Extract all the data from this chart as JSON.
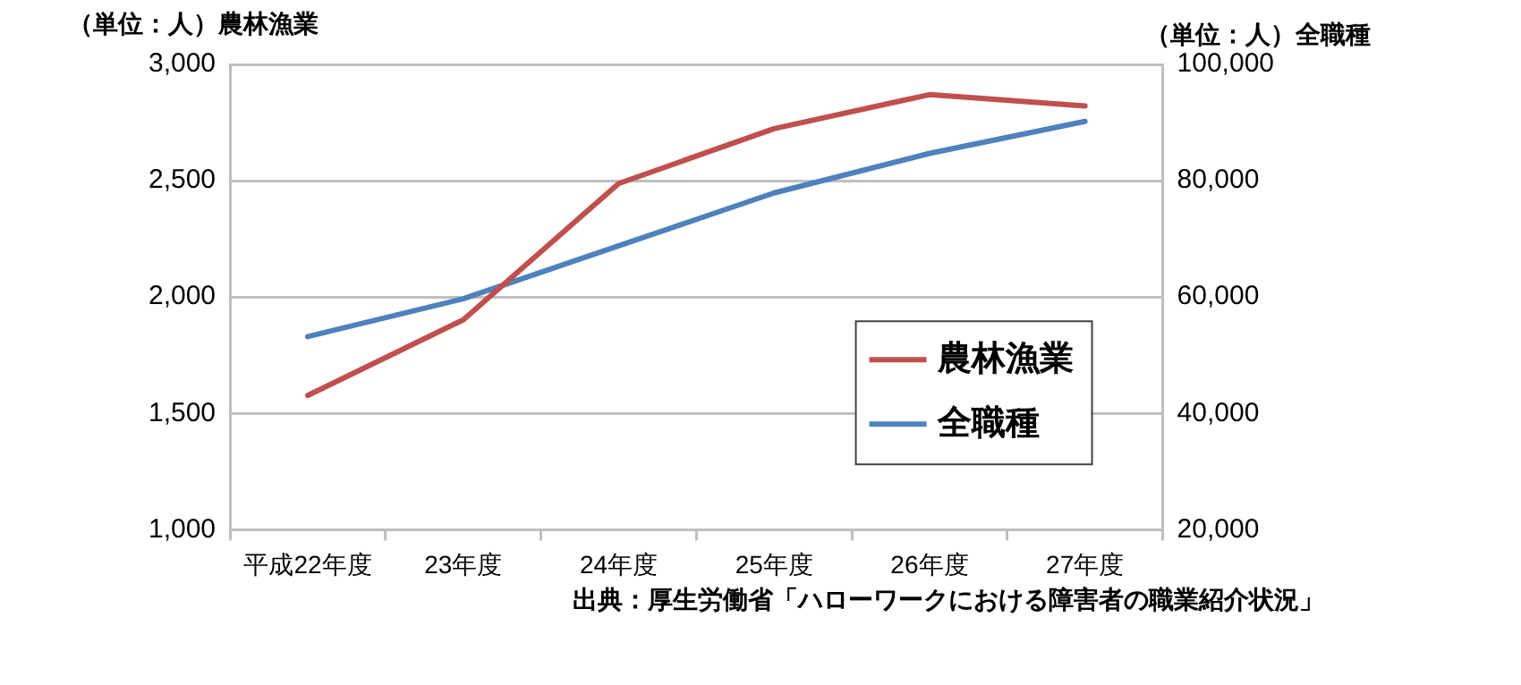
{
  "chart_data": {
    "type": "line",
    "ylabel": "（単位：人）農林漁業",
    "y2label": "（単位：人）全職種",
    "categories": [
      "平成22年度",
      "23年度",
      "24年度",
      "25年度",
      "26年度",
      "27年度"
    ],
    "series": [
      {
        "name": "農林漁業",
        "color": "#c0504d",
        "values": [
          1577,
          1902,
          2488,
          2724,
          2870,
          2821
        ]
      },
      {
        "name": "全職種",
        "color": "#4f81bd",
        "axis": "y2",
        "values": [
          53200,
          59700,
          68800,
          77900,
          84700,
          90200
        ]
      }
    ],
    "ylim": [
      1000,
      3000
    ],
    "yticks": [
      {
        "value": 1000,
        "label": "1,000"
      },
      {
        "value": 1500,
        "label": "1,500"
      },
      {
        "value": 2000,
        "label": "2,000"
      },
      {
        "value": 2500,
        "label": "2,500"
      },
      {
        "value": 3000,
        "label": "3,000"
      }
    ],
    "y2lim": [
      20000,
      100000
    ],
    "y2ticks": [
      {
        "value": 20000,
        "label": "20,000"
      },
      {
        "value": 40000,
        "label": "40,000"
      },
      {
        "value": 60000,
        "label": "60,000"
      },
      {
        "value": 80000,
        "label": "80,000"
      },
      {
        "value": 100000,
        "label": "100,000"
      }
    ],
    "grid": "y",
    "legend": "right",
    "marker": "none",
    "line_style": "solid",
    "annotations": [
      "出典：厚生労働省「ハローワークにおける障害者の職業紹介状況」"
    ]
  }
}
